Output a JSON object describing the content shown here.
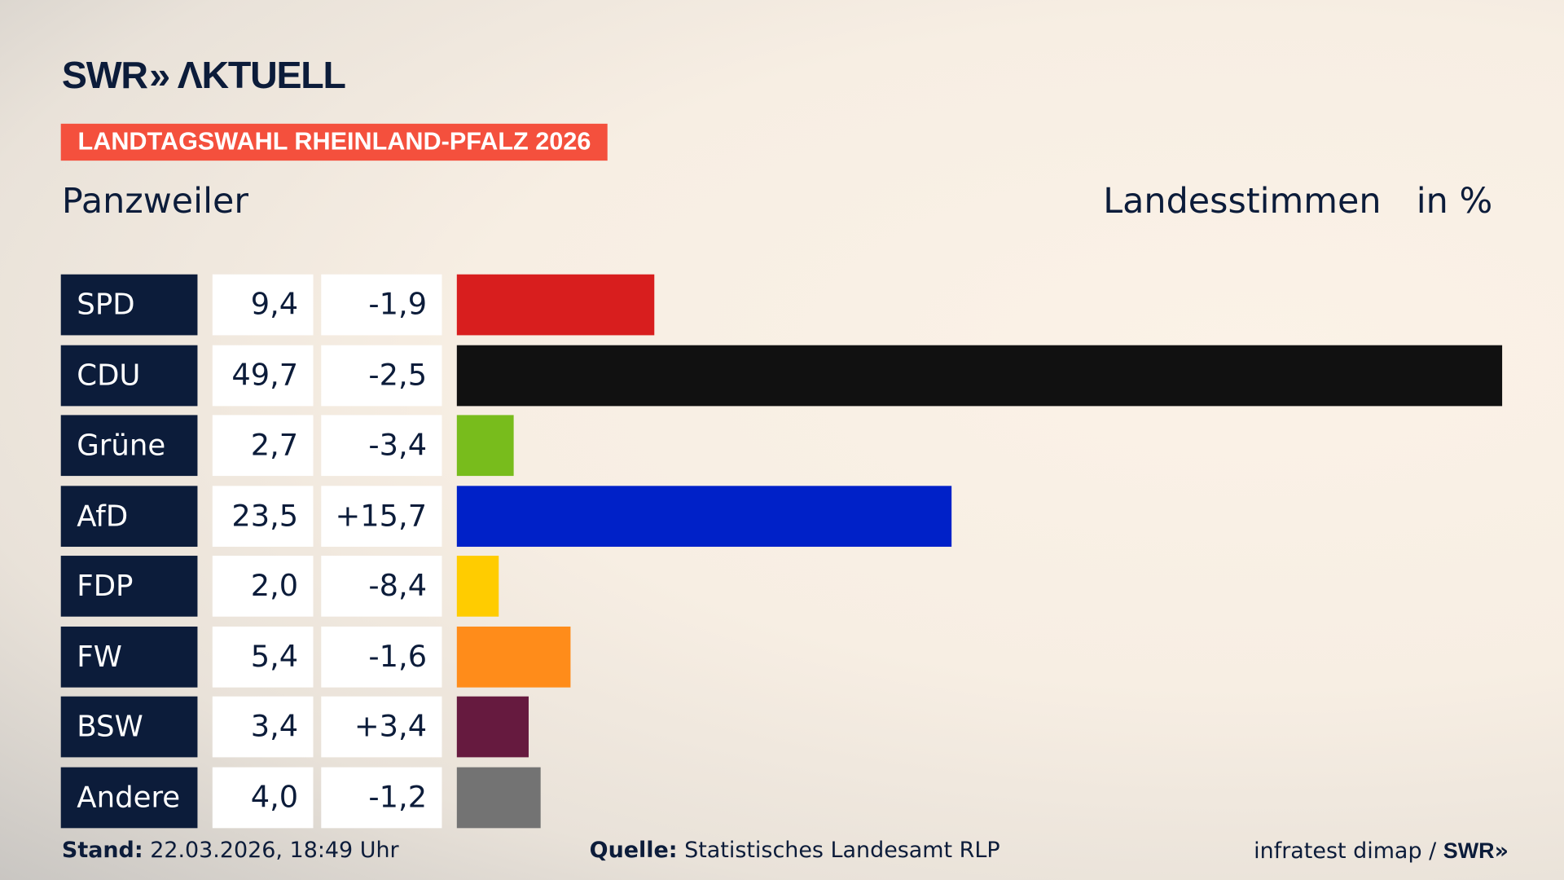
{
  "header": {
    "logo_text": "SWR AKTUELL",
    "election_badge": "LANDTAGSWAHL RHEINLAND-PFALZ 2026",
    "place": "Panzweiler",
    "measure": "Landesstimmen",
    "unit": "in %"
  },
  "chart_data": {
    "type": "bar",
    "orientation": "horizontal",
    "categories": [
      "SPD",
      "CDU",
      "Grüne",
      "AfD",
      "FDP",
      "FW",
      "BSW",
      "Andere"
    ],
    "values": [
      9.4,
      49.7,
      2.7,
      23.5,
      2.0,
      5.4,
      3.4,
      4.0
    ],
    "value_labels": [
      "9,4",
      "49,7",
      "2,7",
      "23,5",
      "2,0",
      "5,4",
      "3,4",
      "4,0"
    ],
    "changes": [
      -1.9,
      -2.5,
      -3.4,
      15.7,
      -8.4,
      -1.6,
      3.4,
      -1.2
    ],
    "change_labels": [
      "-1,9",
      "-2,5",
      "-3,4",
      "+15,7",
      "-8,4",
      "-1,6",
      "+3,4",
      "-1,2"
    ],
    "colors": [
      "#d81e1e",
      "#111111",
      "#78bc1c",
      "#0021c8",
      "#ffcc00",
      "#ff8c1a",
      "#661a3f",
      "#737373"
    ],
    "xlim": [
      0,
      49.7
    ],
    "grid": false
  },
  "footer": {
    "stand_label": "Stand:",
    "stand_value": "22.03.2026, 18:49 Uhr",
    "source_label": "Quelle:",
    "source_value": "Statistisches Landesamt RLP",
    "credit": "infratest dimap / ",
    "credit_logo": "SWR"
  }
}
